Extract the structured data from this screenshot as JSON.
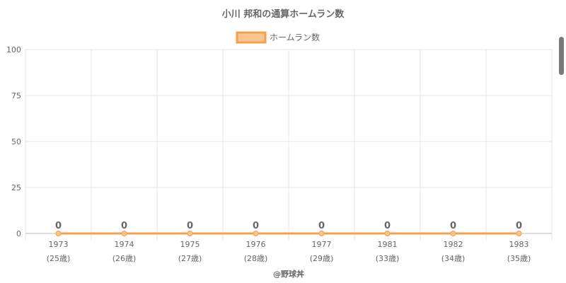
{
  "chart_data": {
    "type": "line",
    "title": "小川 邦和の通算ホームラン数",
    "categories": [
      "1973",
      "1974",
      "1975",
      "1976",
      "1977",
      "1981",
      "1982",
      "1983"
    ],
    "age_labels": [
      "(25歳)",
      "(26歳)",
      "(27歳)",
      "(28歳)",
      "(29歳)",
      "(33歳)",
      "(34歳)",
      "(35歳)"
    ],
    "series": [
      {
        "name": "ホームラン数",
        "values": [
          0,
          0,
          0,
          0,
          0,
          0,
          0,
          0
        ],
        "color": "#f5a04a",
        "fill": "#f9c48f"
      }
    ],
    "ylim": [
      0,
      100
    ],
    "yticks": [
      0,
      25,
      50,
      75,
      100
    ],
    "grid": true,
    "legend_position": "top-center",
    "xlabel": "",
    "ylabel": ""
  },
  "footer": "@野球丼"
}
